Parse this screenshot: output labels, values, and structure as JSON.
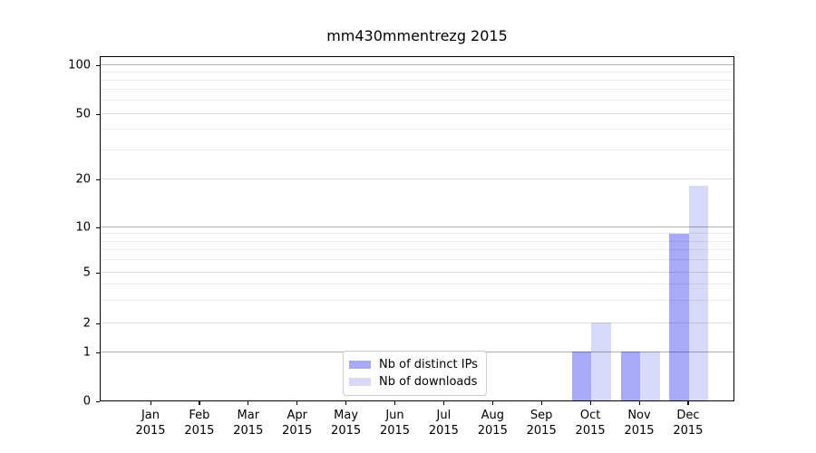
{
  "title": "mm430mmentrezg 2015",
  "chart_data": {
    "type": "bar",
    "title": "mm430mmentrezg 2015",
    "months": [
      "Jan",
      "Feb",
      "Mar",
      "Apr",
      "May",
      "Jun",
      "Jul",
      "Aug",
      "Sep",
      "Oct",
      "Nov",
      "Dec"
    ],
    "year": "2015",
    "categories": [
      "Jan 2015",
      "Feb 2015",
      "Mar 2015",
      "Apr 2015",
      "May 2015",
      "Jun 2015",
      "Jul 2015",
      "Aug 2015",
      "Sep 2015",
      "Oct 2015",
      "Nov 2015",
      "Dec 2015"
    ],
    "series": [
      {
        "name": "Nb of distinct IPs",
        "color": "#a9a9f9",
        "values": [
          0,
          0,
          0,
          0,
          0,
          0,
          0,
          0,
          0,
          1,
          1,
          9
        ]
      },
      {
        "name": "Nb of downloads",
        "color": "#d8d8f8",
        "values": [
          0,
          0,
          0,
          0,
          0,
          0,
          0,
          0,
          0,
          2,
          1,
          18
        ]
      }
    ],
    "y_axis": {
      "scale": "log-like",
      "ticks": [
        0,
        1,
        2,
        5,
        10,
        20,
        50,
        100
      ],
      "minor_gridlines": [
        3,
        4,
        6,
        7,
        8,
        9,
        30,
        40,
        60,
        70,
        80,
        90
      ],
      "ylim": [
        0,
        114
      ]
    },
    "grid": true,
    "legend_position": "lower center",
    "colors": {
      "major_grid": "rgba(0,0,0,0.30)",
      "mid_grid": "rgba(0,0,0,0.12)",
      "minor_grid": "rgba(0,0,0,0.08)",
      "spine": "#000000",
      "background": "#ffffff"
    }
  }
}
